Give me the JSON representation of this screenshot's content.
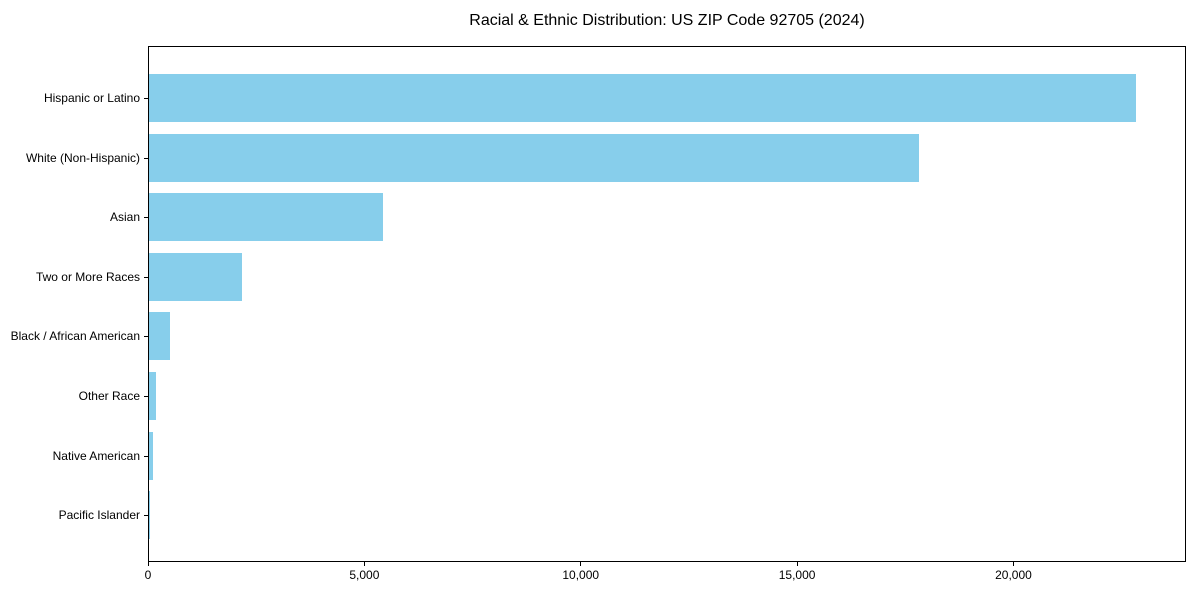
{
  "chart_data": {
    "type": "bar",
    "orientation": "horizontal",
    "title": "Racial & Ethnic Distribution: US ZIP Code 92705 (2024)",
    "categories": [
      "Hispanic or Latino",
      "White (Non-Hispanic)",
      "Asian",
      "Two or More Races",
      "Black / African American",
      "Other Race",
      "Native American",
      "Pacific Islander"
    ],
    "values": [
      22800,
      17800,
      5400,
      2150,
      490,
      165,
      100,
      15
    ],
    "xlabel": "",
    "ylabel": "",
    "xlim": [
      0,
      23940
    ],
    "x_ticks": [
      0,
      5000,
      10000,
      15000,
      20000
    ],
    "x_tick_labels": [
      "0",
      "5,000",
      "10,000",
      "15,000",
      "20,000"
    ],
    "bar_color": "#87CEEB",
    "axis_color": "#000000",
    "text_color": "#000000",
    "grid": false,
    "legend": null
  }
}
